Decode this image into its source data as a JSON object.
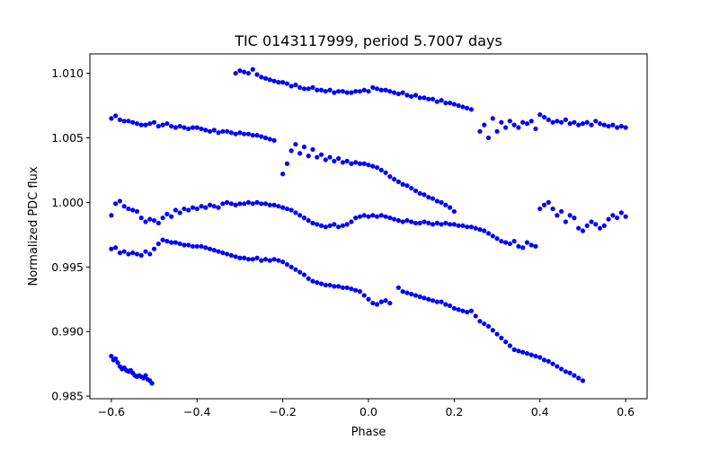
{
  "chart_data": {
    "type": "scatter",
    "title": "TIC 0143117999, period 5.7007 days",
    "xlabel": "Phase",
    "ylabel": "Normalized PDC flux",
    "xlim": [
      -0.65,
      0.65
    ],
    "ylim": [
      0.9848,
      1.0115
    ],
    "xticks": [
      -0.6,
      -0.4,
      -0.2,
      0.0,
      0.2,
      0.4,
      0.6
    ],
    "xtick_labels": [
      "−0.6",
      "−0.4",
      "−0.2",
      "0.0",
      "0.2",
      "0.4",
      "0.6"
    ],
    "yticks": [
      0.985,
      0.99,
      0.995,
      1.0,
      1.005,
      1.01
    ],
    "ytick_labels": [
      "0.985",
      "0.990",
      "0.995",
      "1.000",
      "1.005",
      "1.010"
    ],
    "grid": false,
    "marker_color": "#0000ff",
    "series": [
      {
        "segments": [
          {
            "x": [
              -0.31,
              -0.3,
              -0.29,
              -0.28,
              -0.27,
              -0.26,
              -0.25,
              -0.24,
              -0.23,
              -0.22,
              -0.21,
              -0.2,
              -0.19,
              -0.18,
              -0.17,
              -0.16,
              -0.15,
              -0.14,
              -0.13,
              -0.12,
              -0.11,
              -0.1,
              -0.09,
              -0.08,
              -0.07,
              -0.06,
              -0.05,
              -0.04,
              -0.03,
              -0.02,
              -0.01,
              0.0
            ],
            "y": [
              1.01,
              1.0102,
              1.0101,
              1.01,
              1.0103,
              1.0099,
              1.0097,
              1.0096,
              1.0095,
              1.0094,
              1.0093,
              1.0093,
              1.0092,
              1.009,
              1.0091,
              1.0089,
              1.0088,
              1.0088,
              1.0089,
              1.0087,
              1.0087,
              1.0086,
              1.0087,
              1.0085,
              1.0086,
              1.0086,
              1.0085,
              1.0085,
              1.0086,
              1.0086,
              1.0087,
              1.0086
            ]
          },
          {
            "x": [
              0.01,
              0.02,
              0.03,
              0.04,
              0.05,
              0.06,
              0.07,
              0.08,
              0.09,
              0.1,
              0.11,
              0.12,
              0.13,
              0.14,
              0.15,
              0.16,
              0.17,
              0.18,
              0.19,
              0.2,
              0.21,
              0.22,
              0.23,
              0.24
            ],
            "y": [
              1.0089,
              1.0088,
              1.0087,
              1.0087,
              1.0086,
              1.0085,
              1.0084,
              1.0085,
              1.0083,
              1.0082,
              1.0083,
              1.0081,
              1.0081,
              1.008,
              1.008,
              1.0078,
              1.0079,
              1.0077,
              1.0077,
              1.0076,
              1.0075,
              1.0074,
              1.0073,
              1.0072
            ]
          },
          {
            "x": [
              0.26,
              0.27,
              0.28,
              0.29,
              0.3,
              0.31,
              0.32,
              0.33,
              0.34,
              0.35,
              0.36,
              0.37,
              0.38,
              0.39,
              0.4,
              0.41,
              0.42,
              0.43,
              0.44,
              0.45,
              0.46,
              0.47,
              0.48,
              0.49,
              0.5,
              0.51,
              0.52,
              0.53,
              0.54,
              0.55,
              0.56,
              0.57,
              0.58,
              0.59,
              0.6
            ],
            "y": [
              1.0055,
              1.006,
              1.005,
              1.0065,
              1.0055,
              1.0062,
              1.0058,
              1.0063,
              1.006,
              1.0058,
              1.0062,
              1.0061,
              1.0063,
              1.0057,
              1.0068,
              1.0066,
              1.0064,
              1.0062,
              1.0063,
              1.0062,
              1.0064,
              1.0061,
              1.0062,
              1.006,
              1.0061,
              1.0062,
              1.006,
              1.0063,
              1.0061,
              1.006,
              1.0059,
              1.006,
              1.0058,
              1.0059,
              1.0058
            ]
          }
        ]
      },
      {
        "segments": [
          {
            "x": [
              -0.6,
              -0.59,
              -0.58,
              -0.57,
              -0.56,
              -0.55,
              -0.54,
              -0.53,
              -0.52,
              -0.51,
              -0.5,
              -0.49,
              -0.48,
              -0.47,
              -0.46,
              -0.45,
              -0.44,
              -0.43,
              -0.42,
              -0.41,
              -0.4,
              -0.39,
              -0.38,
              -0.37,
              -0.36,
              -0.35,
              -0.34,
              -0.33,
              -0.32,
              -0.31,
              -0.3,
              -0.29,
              -0.28,
              -0.27,
              -0.26,
              -0.25,
              -0.24,
              -0.23,
              -0.22
            ],
            "y": [
              1.0065,
              1.0067,
              1.0064,
              1.0063,
              1.0063,
              1.0062,
              1.0061,
              1.006,
              1.006,
              1.0061,
              1.0062,
              1.0059,
              1.006,
              1.0061,
              1.0059,
              1.0058,
              1.0059,
              1.0058,
              1.0057,
              1.0058,
              1.0058,
              1.0057,
              1.0056,
              1.0055,
              1.0056,
              1.0054,
              1.0055,
              1.0055,
              1.0054,
              1.0053,
              1.0054,
              1.0053,
              1.0053,
              1.0052,
              1.0052,
              1.0051,
              1.005,
              1.0049,
              1.0048
            ]
          },
          {
            "x": [
              -0.2,
              -0.19,
              -0.18,
              -0.17,
              -0.16,
              -0.15,
              -0.14,
              -0.13,
              -0.12,
              -0.11,
              -0.1,
              -0.09,
              -0.08,
              -0.07,
              -0.06,
              -0.05,
              -0.04,
              -0.03,
              -0.02,
              -0.01,
              0.0,
              0.01,
              0.02,
              0.03,
              0.04,
              0.05,
              0.06,
              0.07,
              0.08,
              0.09,
              0.1,
              0.11,
              0.12,
              0.13,
              0.14,
              0.15,
              0.16,
              0.17,
              0.18,
              0.19,
              0.2
            ],
            "y": [
              1.0022,
              1.003,
              1.004,
              1.0045,
              1.0038,
              1.0043,
              1.0036,
              1.0041,
              1.0035,
              1.0037,
              1.0033,
              1.0035,
              1.0032,
              1.0034,
              1.0031,
              1.0032,
              1.003,
              1.0031,
              1.003,
              1.003,
              1.0029,
              1.0028,
              1.0027,
              1.0025,
              1.0023,
              1.002,
              1.0018,
              1.0016,
              1.0014,
              1.0013,
              1.0011,
              1.0009,
              1.0007,
              1.0006,
              1.0004,
              1.0003,
              1.0001,
              1.0,
              0.9998,
              0.9996,
              0.9993
            ]
          }
        ]
      },
      {
        "segments": [
          {
            "x": [
              -0.6,
              -0.59,
              -0.58,
              -0.57,
              -0.56,
              -0.55,
              -0.54,
              -0.53,
              -0.52,
              -0.51,
              -0.5,
              -0.49,
              -0.48,
              -0.47,
              -0.46,
              -0.45,
              -0.44,
              -0.43,
              -0.42,
              -0.41,
              -0.4,
              -0.39,
              -0.38,
              -0.37,
              -0.36,
              -0.35,
              -0.34,
              -0.33,
              -0.32,
              -0.31,
              -0.3,
              -0.29,
              -0.28,
              -0.27,
              -0.26,
              -0.25,
              -0.24,
              -0.23,
              -0.22,
              -0.21,
              -0.2,
              -0.19,
              -0.18,
              -0.17,
              -0.16,
              -0.15,
              -0.14,
              -0.13,
              -0.12,
              -0.11,
              -0.1,
              -0.09,
              -0.08,
              -0.07,
              -0.06,
              -0.05,
              -0.04,
              -0.03,
              -0.02,
              -0.01,
              0.0,
              0.01,
              0.02,
              0.03,
              0.04,
              0.05,
              0.06,
              0.07,
              0.08,
              0.09,
              0.1,
              0.11,
              0.12,
              0.13,
              0.14,
              0.15,
              0.16,
              0.17,
              0.18,
              0.19,
              0.2,
              0.21,
              0.22,
              0.23,
              0.24,
              0.25,
              0.26,
              0.27,
              0.28,
              0.29,
              0.3,
              0.31,
              0.32,
              0.33,
              0.34,
              0.35,
              0.36,
              0.37,
              0.38,
              0.39
            ],
            "y": [
              0.999,
              0.9999,
              1.0001,
              0.9997,
              0.9995,
              0.9994,
              0.9993,
              0.9988,
              0.9985,
              0.9987,
              0.9986,
              0.9984,
              0.9988,
              0.9991,
              0.9989,
              0.9994,
              0.9992,
              0.9995,
              0.9994,
              0.9996,
              0.9995,
              0.9997,
              0.9996,
              0.9998,
              0.9997,
              0.9996,
              0.9999,
              1.0,
              0.9999,
              0.9998,
              0.9999,
              0.9999,
              1.0,
              0.9999,
              1.0,
              0.9999,
              0.9999,
              0.9998,
              0.9998,
              0.9997,
              0.9996,
              0.9995,
              0.9994,
              0.9992,
              0.999,
              0.9988,
              0.9986,
              0.9984,
              0.9983,
              0.9982,
              0.9981,
              0.9982,
              0.9983,
              0.9981,
              0.9982,
              0.9983,
              0.9985,
              0.9988,
              0.9989,
              0.999,
              0.9989,
              0.999,
              0.9989,
              0.999,
              0.9989,
              0.9988,
              0.9987,
              0.9986,
              0.9985,
              0.9986,
              0.9985,
              0.9984,
              0.9984,
              0.9985,
              0.9984,
              0.9983,
              0.9984,
              0.9983,
              0.9984,
              0.9983,
              0.9983,
              0.9982,
              0.9982,
              0.9981,
              0.9981,
              0.998,
              0.9979,
              0.9978,
              0.9976,
              0.9974,
              0.9972,
              0.997,
              0.9969,
              0.9968,
              0.997,
              0.9966,
              0.9965,
              0.9969,
              0.9967,
              0.9966
            ]
          },
          {
            "x": [
              0.4,
              0.41,
              0.42,
              0.43,
              0.44,
              0.45,
              0.46,
              0.47,
              0.48,
              0.49,
              0.5,
              0.51,
              0.52,
              0.53,
              0.54,
              0.55,
              0.56,
              0.57,
              0.58,
              0.59,
              0.6
            ],
            "y": [
              0.9995,
              0.9998,
              1.0,
              0.9995,
              0.999,
              0.9993,
              0.9985,
              0.999,
              0.9988,
              0.998,
              0.9978,
              0.9982,
              0.9985,
              0.9983,
              0.998,
              0.9982,
              0.9987,
              0.999,
              0.9988,
              0.9992,
              0.9989
            ]
          }
        ]
      },
      {
        "segments": [
          {
            "x": [
              -0.6,
              -0.59,
              -0.58,
              -0.57,
              -0.56,
              -0.55,
              -0.54,
              -0.53,
              -0.52,
              -0.51,
              -0.5,
              -0.49,
              -0.48,
              -0.47,
              -0.46,
              -0.45,
              -0.44,
              -0.43,
              -0.42,
              -0.41,
              -0.4,
              -0.39,
              -0.38,
              -0.37,
              -0.36,
              -0.35,
              -0.34,
              -0.33,
              -0.32,
              -0.31,
              -0.3,
              -0.29,
              -0.28,
              -0.27,
              -0.26,
              -0.25,
              -0.24,
              -0.23,
              -0.22,
              -0.21,
              -0.2,
              -0.19,
              -0.18,
              -0.17,
              -0.16,
              -0.15,
              -0.14,
              -0.13,
              -0.12,
              -0.11,
              -0.1,
              -0.09,
              -0.08,
              -0.07,
              -0.06,
              -0.05,
              -0.04,
              -0.03,
              -0.02,
              -0.01,
              0.0,
              0.01,
              0.02,
              0.03,
              0.04,
              0.05
            ],
            "y": [
              0.9964,
              0.9965,
              0.9961,
              0.9962,
              0.996,
              0.9961,
              0.996,
              0.9959,
              0.9962,
              0.996,
              0.9964,
              0.9968,
              0.9971,
              0.997,
              0.9969,
              0.9969,
              0.9968,
              0.9967,
              0.9967,
              0.9966,
              0.9966,
              0.9966,
              0.9965,
              0.9964,
              0.9963,
              0.9962,
              0.9961,
              0.996,
              0.9959,
              0.9958,
              0.9957,
              0.9957,
              0.9956,
              0.9956,
              0.9957,
              0.9955,
              0.9956,
              0.9955,
              0.9956,
              0.9955,
              0.9954,
              0.9952,
              0.995,
              0.9948,
              0.9946,
              0.9944,
              0.9941,
              0.9939,
              0.9938,
              0.9937,
              0.9936,
              0.9936,
              0.9935,
              0.9935,
              0.9934,
              0.9934,
              0.9933,
              0.9932,
              0.9931,
              0.9928,
              0.9925,
              0.9922,
              0.9921,
              0.9923,
              0.9924,
              0.9922
            ]
          },
          {
            "x": [
              0.07,
              0.08,
              0.09,
              0.1,
              0.11,
              0.12,
              0.13,
              0.14,
              0.15,
              0.16,
              0.17,
              0.18,
              0.19,
              0.2,
              0.21,
              0.22,
              0.23,
              0.24,
              0.25,
              0.26,
              0.27,
              0.28,
              0.29,
              0.3,
              0.31,
              0.32,
              0.33,
              0.34,
              0.35,
              0.36,
              0.37,
              0.38,
              0.39,
              0.4,
              0.41,
              0.42,
              0.43,
              0.44,
              0.45,
              0.46,
              0.47,
              0.48,
              0.49,
              0.5
            ],
            "y": [
              0.9934,
              0.9931,
              0.993,
              0.9929,
              0.9928,
              0.9927,
              0.9926,
              0.9925,
              0.9924,
              0.9923,
              0.9923,
              0.9921,
              0.992,
              0.9918,
              0.9917,
              0.9916,
              0.9915,
              0.9916,
              0.9912,
              0.9908,
              0.9906,
              0.9904,
              0.9901,
              0.9898,
              0.9895,
              0.9892,
              0.9889,
              0.9886,
              0.9885,
              0.9884,
              0.9883,
              0.9882,
              0.9881,
              0.988,
              0.9878,
              0.9877,
              0.9875,
              0.9873,
              0.9871,
              0.9869,
              0.9868,
              0.9866,
              0.9864,
              0.9862
            ]
          }
        ]
      },
      {
        "segments": [
          {
            "x": [
              -0.6,
              -0.595,
              -0.59,
              -0.585,
              -0.58,
              -0.575,
              -0.57,
              -0.565,
              -0.56,
              -0.555,
              -0.55,
              -0.545,
              -0.54,
              -0.535,
              -0.53,
              -0.525,
              -0.52,
              -0.515,
              -0.51,
              -0.505
            ],
            "y": [
              0.9881,
              0.9878,
              0.9879,
              0.9876,
              0.9873,
              0.9871,
              0.9872,
              0.987,
              0.9869,
              0.987,
              0.9868,
              0.9866,
              0.9865,
              0.9866,
              0.9865,
              0.9864,
              0.9866,
              0.9863,
              0.9862,
              0.986
            ]
          }
        ]
      }
    ]
  }
}
